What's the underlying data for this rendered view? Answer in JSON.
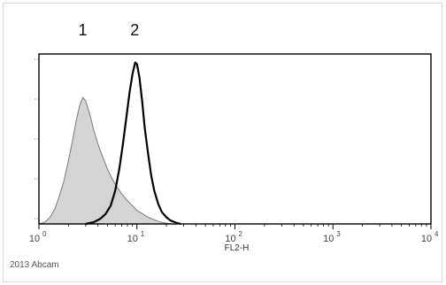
{
  "chart_data": {
    "type": "area",
    "x_scale": "log",
    "xlim": [
      1,
      10000
    ],
    "xlabel": "FL2-H",
    "x_ticks": [
      {
        "value": 1,
        "base": "10",
        "exp": "0"
      },
      {
        "value": 10,
        "base": "10",
        "exp": "1"
      },
      {
        "value": 100,
        "base": "10",
        "exp": "2"
      },
      {
        "value": 1000,
        "base": "10",
        "exp": "3"
      },
      {
        "value": 10000,
        "base": "10",
        "exp": "4"
      }
    ],
    "ylim": [
      0,
      1
    ],
    "grid": false,
    "annotations": [
      {
        "text": "1",
        "x": 2.8
      },
      {
        "text": "2",
        "x": 9.5
      }
    ],
    "credit": "2013 Abcam",
    "series": [
      {
        "style": "filled",
        "fill": "#d4d4d4",
        "stroke": "#7a7a7a",
        "points": [
          [
            1.0,
            0.0
          ],
          [
            1.15,
            0.01
          ],
          [
            1.3,
            0.04
          ],
          [
            1.45,
            0.09
          ],
          [
            1.6,
            0.16
          ],
          [
            1.8,
            0.26
          ],
          [
            2.0,
            0.38
          ],
          [
            2.2,
            0.5
          ],
          [
            2.4,
            0.62
          ],
          [
            2.6,
            0.71
          ],
          [
            2.8,
            0.76
          ],
          [
            3.0,
            0.74
          ],
          [
            3.3,
            0.66
          ],
          [
            3.6,
            0.57
          ],
          [
            4.0,
            0.48
          ],
          [
            4.5,
            0.4
          ],
          [
            5.0,
            0.33
          ],
          [
            5.6,
            0.27
          ],
          [
            6.3,
            0.22
          ],
          [
            7.0,
            0.18
          ],
          [
            8.0,
            0.14
          ],
          [
            9.0,
            0.11
          ],
          [
            10.0,
            0.08
          ],
          [
            11.5,
            0.06
          ],
          [
            13.0,
            0.04
          ],
          [
            15.0,
            0.025
          ],
          [
            17.0,
            0.012
          ],
          [
            20.0,
            0.004
          ],
          [
            23.0,
            0.0
          ]
        ]
      },
      {
        "style": "line",
        "fill": "none",
        "stroke": "#000000",
        "points": [
          [
            3.0,
            0.0
          ],
          [
            3.6,
            0.01
          ],
          [
            4.2,
            0.03
          ],
          [
            4.8,
            0.06
          ],
          [
            5.4,
            0.11
          ],
          [
            6.0,
            0.2
          ],
          [
            6.6,
            0.33
          ],
          [
            7.2,
            0.48
          ],
          [
            7.8,
            0.64
          ],
          [
            8.4,
            0.79
          ],
          [
            9.0,
            0.9
          ],
          [
            9.6,
            0.97
          ],
          [
            10.0,
            0.96
          ],
          [
            10.6,
            0.88
          ],
          [
            11.3,
            0.74
          ],
          [
            12.0,
            0.58
          ],
          [
            13.0,
            0.42
          ],
          [
            14.0,
            0.29
          ],
          [
            15.0,
            0.2
          ],
          [
            16.5,
            0.12
          ],
          [
            18.0,
            0.07
          ],
          [
            20.0,
            0.04
          ],
          [
            22.0,
            0.02
          ],
          [
            25.0,
            0.008
          ],
          [
            28.0,
            0.0
          ]
        ]
      }
    ]
  }
}
